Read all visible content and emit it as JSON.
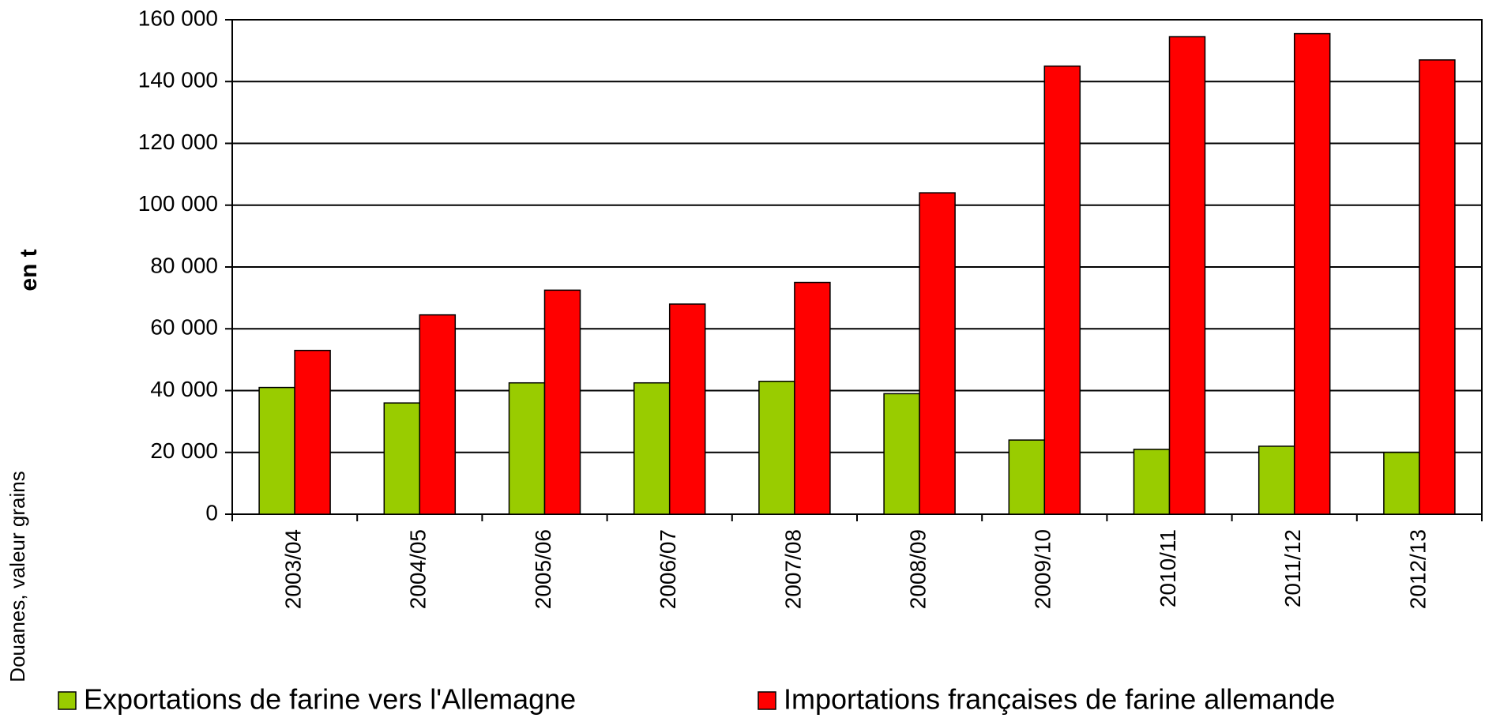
{
  "chart_data": {
    "type": "bar",
    "y_label": "en t",
    "source": "Douanes, valeur grains",
    "categories": [
      "2003/04",
      "2004/05",
      "2005/06",
      "2006/07",
      "2007/08",
      "2008/09",
      "2009/10",
      "2010/11",
      "2011/12",
      "2012/13"
    ],
    "series": [
      {
        "name": "Exportations de farine vers l'Allemagne",
        "color": "#99cc00",
        "values": [
          41000,
          36000,
          42500,
          42500,
          43000,
          39000,
          24000,
          21000,
          22000,
          20000
        ]
      },
      {
        "name": "Importations françaises de farine allemande",
        "color": "#ff0000",
        "values": [
          53000,
          64500,
          72500,
          68000,
          75000,
          104000,
          145000,
          154500,
          155500,
          147000
        ]
      }
    ],
    "ylim": [
      0,
      160000
    ],
    "yticks": [
      0,
      {
        "value": 20000,
        "label": "20 000"
      },
      {
        "value": 40000,
        "label": "40 000"
      },
      {
        "value": 60000,
        "label": "60 000"
      },
      {
        "value": 80000,
        "label": "80 000"
      },
      {
        "value": 100000,
        "label": "100 000"
      },
      {
        "value": 120000,
        "label": "120 000"
      },
      {
        "value": 140000,
        "label": "140 000"
      },
      {
        "value": 160000,
        "label": "160 000"
      }
    ],
    "grid": true,
    "legend": "bottom"
  }
}
